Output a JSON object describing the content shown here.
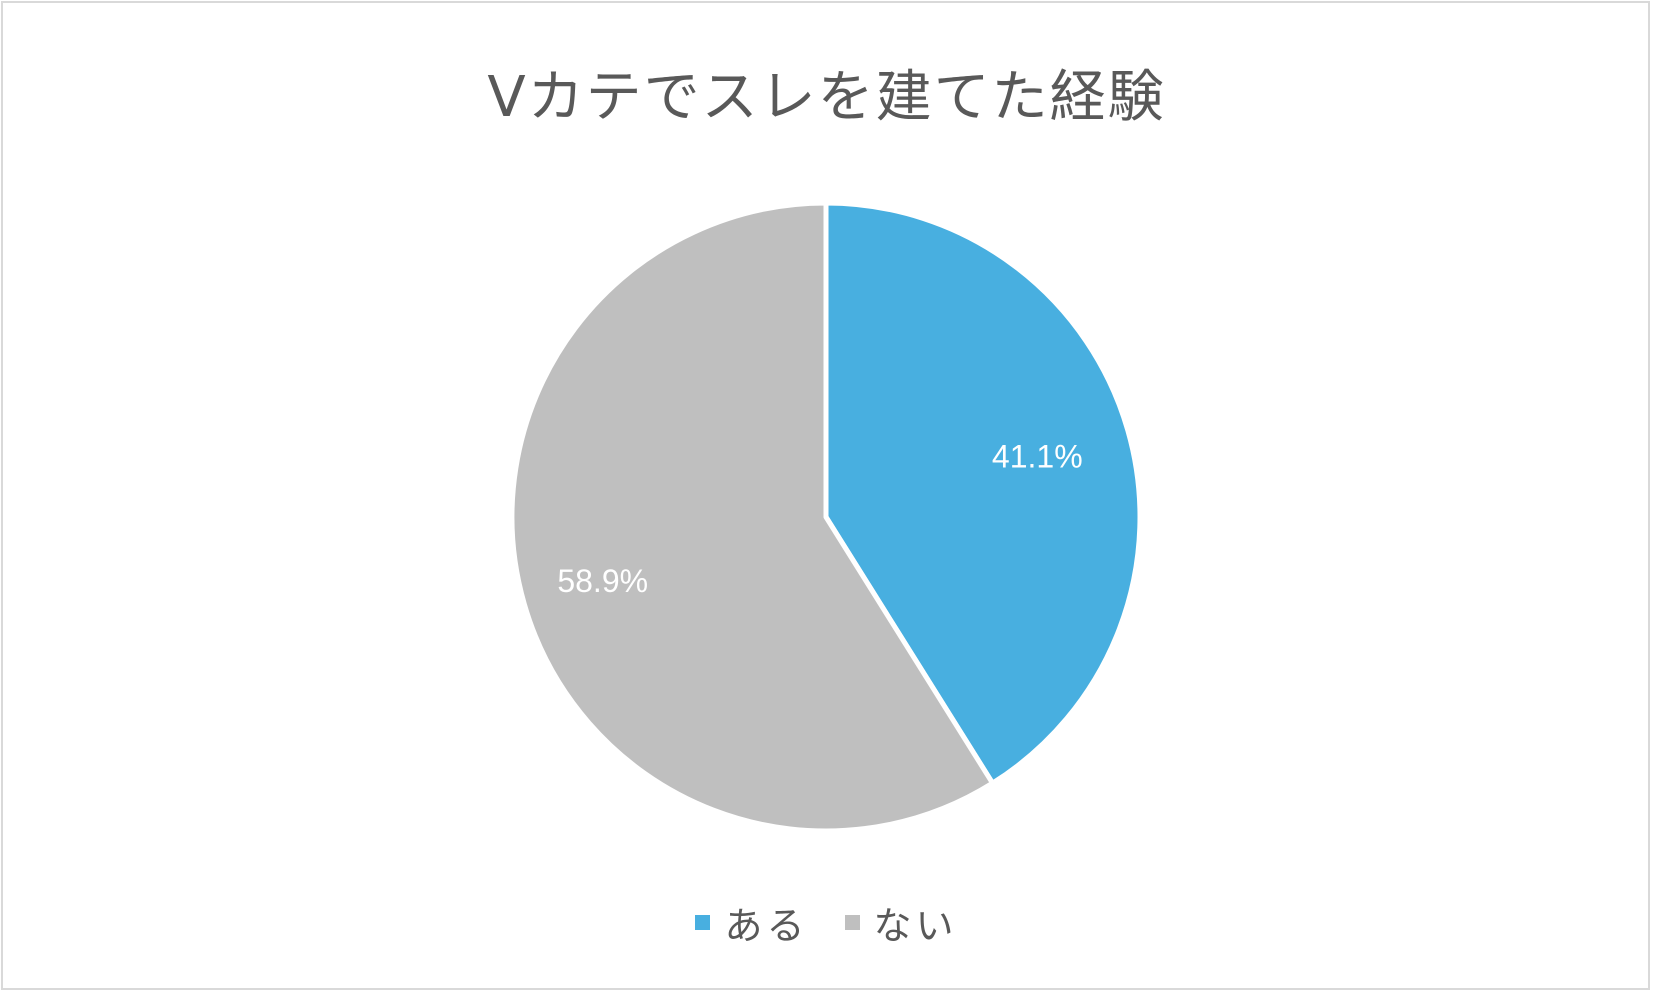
{
  "chart_data": {
    "type": "pie",
    "title": "Vカテでスレを建てた経験",
    "slices": [
      {
        "label": "ある",
        "value": 41.1,
        "value_label": "41.1%",
        "color": "#48AFE0"
      },
      {
        "label": "ない",
        "value": 58.9,
        "value_label": "58.9%",
        "color": "#BFBFBF"
      }
    ],
    "start_angle_deg": 0,
    "direction": "clockwise",
    "legend_position": "bottom"
  }
}
